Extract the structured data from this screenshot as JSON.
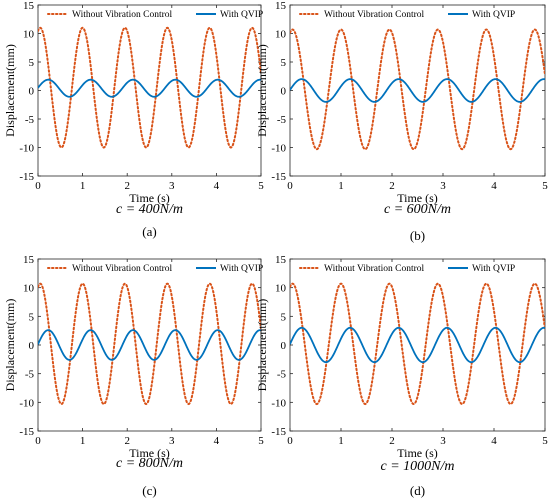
{
  "colors": {
    "without": "#D95319",
    "with": "#0072BD",
    "axis": "#262626"
  },
  "chart_data": [
    {
      "type": "line",
      "panel_label": "(a)",
      "param_text": "c = 400N/m",
      "xlabel": "Time (s)",
      "ylabel": "Displacement(mm)",
      "xlim": [
        0,
        5
      ],
      "ylim": [
        -15,
        15
      ],
      "xticks": [
        "0",
        "1",
        "2",
        "3",
        "4",
        "5"
      ],
      "yticks": [
        "-15",
        "-10",
        "-5",
        "0",
        "5",
        "10",
        "15"
      ],
      "legend_position": "top",
      "series": [
        {
          "name": "Without Vibration Control",
          "style": "dotted",
          "color": "#D95319",
          "amplitude": 10.5,
          "offset": 0.5,
          "period": 0.95,
          "x_at_peak": 0.05
        },
        {
          "name": "With QVIP",
          "style": "solid",
          "color": "#0072BD",
          "amplitude": 1.5,
          "offset": 0.4,
          "period": 0.95,
          "x_at_peak": 0.23
        }
      ]
    },
    {
      "type": "line",
      "panel_label": "(b)",
      "param_text": "c = 600N/m",
      "xlabel": "Time (s)",
      "ylabel": "Displacement(mm)",
      "xlim": [
        0,
        5
      ],
      "ylim": [
        -15,
        15
      ],
      "xticks": [
        "0",
        "1",
        "2",
        "3",
        "4",
        "5"
      ],
      "yticks": [
        "-15",
        "-10",
        "-5",
        "0",
        "5",
        "10",
        "15"
      ],
      "legend_position": "top",
      "series": [
        {
          "name": "Without Vibration Control",
          "style": "dotted",
          "color": "#D95319",
          "amplitude": 10.5,
          "offset": 0.2,
          "period": 0.95,
          "x_at_peak": 0.05
        },
        {
          "name": "With QVIP",
          "style": "solid",
          "color": "#0072BD",
          "amplitude": 2.0,
          "offset": 0.0,
          "period": 0.95,
          "x_at_peak": 0.23
        }
      ]
    },
    {
      "type": "line",
      "panel_label": "(c)",
      "param_text": "c = 800N/m",
      "xlabel": "Time (s)",
      "ylabel": "Displacement(mm)",
      "xlim": [
        0,
        5
      ],
      "ylim": [
        -15,
        15
      ],
      "xticks": [
        "0",
        "1",
        "2",
        "3",
        "4",
        "5"
      ],
      "yticks": [
        "-15",
        "-10",
        "-5",
        "0",
        "5",
        "10",
        "15"
      ],
      "legend_position": "top",
      "series": [
        {
          "name": "Without Vibration Control",
          "style": "dotted",
          "color": "#D95319",
          "amplitude": 10.5,
          "offset": 0.2,
          "period": 0.95,
          "x_at_peak": 0.05
        },
        {
          "name": "With QVIP",
          "style": "solid",
          "color": "#0072BD",
          "amplitude": 2.6,
          "offset": 0.0,
          "period": 0.95,
          "x_at_peak": 0.23
        }
      ]
    },
    {
      "type": "line",
      "panel_label": "(d)",
      "param_text": "c = 1000N/m",
      "xlabel": "Time (s)",
      "ylabel": "Displacement(mm)",
      "xlim": [
        0,
        5
      ],
      "ylim": [
        -15,
        15
      ],
      "xticks": [
        "0",
        "1",
        "2",
        "3",
        "4",
        "5"
      ],
      "yticks": [
        "-15",
        "-10",
        "-5",
        "0",
        "5",
        "10",
        "15"
      ],
      "legend_position": "top",
      "series": [
        {
          "name": "Without Vibration Control",
          "style": "dotted",
          "color": "#D95319",
          "amplitude": 10.5,
          "offset": 0.2,
          "period": 0.95,
          "x_at_peak": 0.05
        },
        {
          "name": "With QVIP",
          "style": "solid",
          "color": "#0072BD",
          "amplitude": 3.0,
          "offset": 0.0,
          "period": 0.95,
          "x_at_peak": 0.23
        }
      ]
    }
  ]
}
